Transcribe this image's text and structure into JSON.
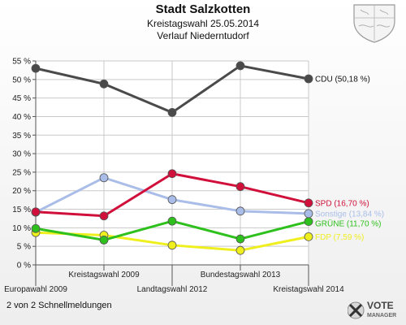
{
  "header": {
    "title": "Stadt Salzkotten",
    "subtitle": "Kreistagswahl 25.05.2014",
    "subtitle2": "Verlauf Niederntudorf"
  },
  "footer": {
    "text": "2 von 2 Schnellmeldungen"
  },
  "logo": {
    "line1": "VOTE",
    "line2": "MANAGER"
  },
  "chart_data": {
    "type": "line",
    "x": [
      "Europawahl 2009",
      "Kreistagswahl 2009",
      "Landtagswahl 2012",
      "Bundestagswahl 2013",
      "Kreistagswahl 2014"
    ],
    "ylim": [
      0,
      55
    ],
    "yticks": [
      "0 %",
      "5 %",
      "10 %",
      "15 %",
      "20 %",
      "25 %",
      "30 %",
      "35 %",
      "40 %",
      "45 %",
      "50 %",
      "55 %"
    ],
    "grid": true,
    "series": [
      {
        "name": "CDU",
        "label": "CDU (50,18 %)",
        "color": "#4a4a4a",
        "values": [
          53.0,
          48.8,
          41.1,
          53.7,
          50.18
        ]
      },
      {
        "name": "SPD",
        "label": "SPD (16,70 %)",
        "color": "#d0103a",
        "values": [
          14.3,
          13.2,
          24.6,
          21.1,
          16.7
        ]
      },
      {
        "name": "Sonstige",
        "label": "Sonstige (13,84 %)",
        "color": "#a9bde8",
        "values": [
          14.2,
          23.5,
          17.6,
          14.5,
          13.84
        ]
      },
      {
        "name": "GRÜNE",
        "label": "GRÜNE (11,70 %)",
        "color": "#2ec01c",
        "values": [
          9.8,
          6.7,
          11.8,
          7.0,
          11.7
        ]
      },
      {
        "name": "FDP",
        "label": "FDP (7,59 %)",
        "color": "#f0ef1e",
        "values": [
          8.7,
          8.0,
          5.3,
          3.9,
          7.59
        ]
      }
    ]
  }
}
